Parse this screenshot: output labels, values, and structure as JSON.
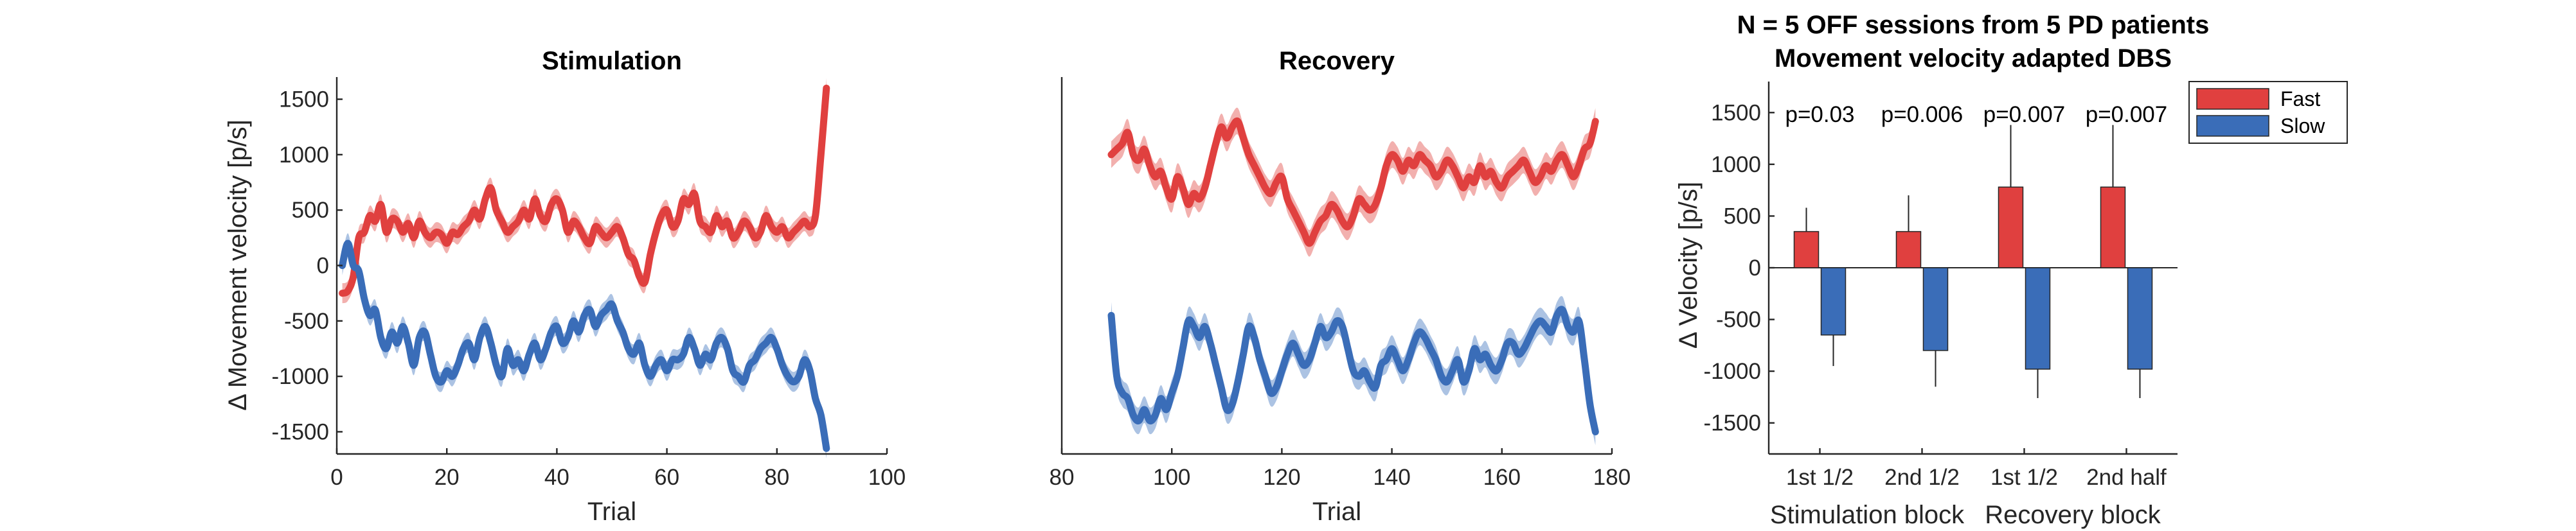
{
  "figure": {
    "colors": {
      "fast": "#E0403F",
      "fast_band": "#F0A2A0",
      "slow": "#3A6DB8",
      "slow_band": "#9DB8DE",
      "axis": "#262626"
    }
  },
  "chart_data": [
    {
      "type": "line",
      "title": "Stimulation",
      "xlabel": "Trial",
      "ylabel": "Δ Movement velocity [p/s]",
      "xlim": [
        0,
        100
      ],
      "ylim": [
        -1700,
        1700
      ],
      "xticks": [
        0,
        20,
        40,
        60,
        80,
        100
      ],
      "yticks": [
        -1500,
        -1000,
        -500,
        0,
        500,
        1000,
        1500
      ],
      "band_halfwidth": 90,
      "series": [
        {
          "key": "fast",
          "x": [
            1,
            2,
            3,
            4,
            5,
            6,
            7,
            8,
            9,
            10,
            11,
            12,
            13,
            14,
            15,
            16,
            17,
            18,
            19,
            20,
            21,
            22,
            23,
            24,
            25,
            26,
            27,
            28,
            29,
            30,
            31,
            32,
            33,
            34,
            35,
            36,
            37,
            38,
            39,
            40,
            41,
            42,
            43,
            44,
            45,
            46,
            47,
            48,
            49,
            50,
            51,
            52,
            53,
            54,
            55,
            56,
            57,
            58,
            59,
            60,
            61,
            62,
            63,
            64,
            65,
            66,
            67,
            68,
            69,
            70,
            71,
            72,
            73,
            74,
            75,
            76,
            77,
            78,
            79,
            80,
            81,
            82,
            83,
            84,
            85,
            86,
            87,
            88,
            89
          ],
          "y": [
            -250,
            -230,
            -100,
            250,
            300,
            450,
            400,
            550,
            300,
            420,
            400,
            300,
            380,
            250,
            400,
            300,
            250,
            300,
            280,
            200,
            300,
            280,
            350,
            400,
            500,
            420,
            600,
            700,
            500,
            400,
            300,
            350,
            400,
            500,
            420,
            600,
            450,
            400,
            550,
            600,
            500,
            300,
            400,
            350,
            250,
            200,
            350,
            300,
            250,
            300,
            350,
            250,
            100,
            50,
            -100,
            -150,
            100,
            300,
            450,
            500,
            350,
            400,
            600,
            550,
            650,
            400,
            350,
            300,
            450,
            350,
            400,
            250,
            300,
            400,
            350,
            250,
            300,
            450,
            350,
            300,
            350,
            250,
            300,
            350,
            400,
            350,
            450,
            1000,
            1600
          ]
        },
        {
          "key": "slow",
          "x": [
            1,
            2,
            3,
            4,
            5,
            6,
            7,
            8,
            9,
            10,
            11,
            12,
            13,
            14,
            15,
            16,
            17,
            18,
            19,
            20,
            21,
            22,
            23,
            24,
            25,
            26,
            27,
            28,
            29,
            30,
            31,
            32,
            33,
            34,
            35,
            36,
            37,
            38,
            39,
            40,
            41,
            42,
            43,
            44,
            45,
            46,
            47,
            48,
            49,
            50,
            51,
            52,
            53,
            54,
            55,
            56,
            57,
            58,
            59,
            60,
            61,
            62,
            63,
            64,
            65,
            66,
            67,
            68,
            69,
            70,
            71,
            72,
            73,
            74,
            75,
            76,
            77,
            78,
            79,
            80,
            81,
            82,
            83,
            84,
            85,
            86,
            87,
            88,
            89
          ],
          "y": [
            0,
            200,
            0,
            -50,
            -300,
            -450,
            -400,
            -650,
            -750,
            -600,
            -700,
            -550,
            -700,
            -900,
            -650,
            -600,
            -800,
            -1000,
            -1050,
            -950,
            -1000,
            -900,
            -750,
            -700,
            -850,
            -650,
            -550,
            -700,
            -900,
            -1000,
            -750,
            -900,
            -850,
            -950,
            -800,
            -700,
            -850,
            -750,
            -600,
            -550,
            -700,
            -650,
            -500,
            -600,
            -450,
            -400,
            -550,
            -450,
            -400,
            -350,
            -500,
            -600,
            -750,
            -800,
            -700,
            -900,
            -1000,
            -900,
            -850,
            -950,
            -850,
            -850,
            -800,
            -650,
            -750,
            -900,
            -800,
            -850,
            -700,
            -650,
            -750,
            -950,
            -1000,
            -1050,
            -900,
            -850,
            -750,
            -700,
            -650,
            -750,
            -900,
            -1000,
            -1050,
            -1000,
            -850,
            -950,
            -1200,
            -1350,
            -1650
          ]
        }
      ]
    },
    {
      "type": "line",
      "title": "Recovery",
      "xlabel": "Trial",
      "ylabel": "",
      "xlim": [
        80,
        180
      ],
      "ylim": [
        -1700,
        1700
      ],
      "xticks": [
        80,
        100,
        120,
        140,
        160,
        180
      ],
      "yticks": [],
      "band_halfwidth": 120,
      "series": [
        {
          "key": "fast",
          "x": [
            89,
            90,
            91,
            92,
            93,
            94,
            95,
            96,
            97,
            98,
            99,
            100,
            101,
            102,
            103,
            104,
            105,
            106,
            107,
            108,
            109,
            110,
            111,
            112,
            113,
            114,
            115,
            116,
            117,
            118,
            119,
            120,
            121,
            122,
            123,
            124,
            125,
            126,
            127,
            128,
            129,
            130,
            131,
            132,
            133,
            134,
            135,
            136,
            137,
            138,
            139,
            140,
            141,
            142,
            143,
            144,
            145,
            146,
            147,
            148,
            149,
            150,
            151,
            152,
            153,
            154,
            155,
            156,
            157,
            158,
            159,
            160,
            161,
            162,
            163,
            164,
            165,
            166,
            167,
            168,
            169,
            170,
            171,
            172,
            173,
            174,
            175,
            176,
            177
          ],
          "y": [
            1000,
            1050,
            1100,
            1200,
            1000,
            950,
            1050,
            900,
            800,
            850,
            700,
            600,
            800,
            700,
            550,
            650,
            600,
            700,
            900,
            1100,
            1250,
            1150,
            1250,
            1300,
            1150,
            1000,
            900,
            800,
            700,
            650,
            750,
            800,
            600,
            500,
            400,
            300,
            200,
            300,
            400,
            450,
            550,
            500,
            400,
            350,
            450,
            600,
            550,
            500,
            550,
            700,
            900,
            1000,
            950,
            850,
            950,
            900,
            1000,
            950,
            900,
            800,
            850,
            950,
            900,
            800,
            700,
            800,
            750,
            900,
            800,
            850,
            750,
            700,
            800,
            850,
            900,
            950,
            850,
            750,
            800,
            900,
            850,
            950,
            1000,
            900,
            800,
            900,
            1050,
            1100,
            1300
          ]
        },
        {
          "key": "slow",
          "x": [
            89,
            90,
            91,
            92,
            93,
            94,
            95,
            96,
            97,
            98,
            99,
            100,
            101,
            102,
            103,
            104,
            105,
            106,
            107,
            108,
            109,
            110,
            111,
            112,
            113,
            114,
            115,
            116,
            117,
            118,
            119,
            120,
            121,
            122,
            123,
            124,
            125,
            126,
            127,
            128,
            129,
            130,
            131,
            132,
            133,
            134,
            135,
            136,
            137,
            138,
            139,
            140,
            141,
            142,
            143,
            144,
            145,
            146,
            147,
            148,
            149,
            150,
            151,
            152,
            153,
            154,
            155,
            156,
            157,
            158,
            159,
            160,
            161,
            162,
            163,
            164,
            165,
            166,
            167,
            168,
            169,
            170,
            171,
            172,
            173,
            174,
            175,
            176,
            177
          ],
          "y": [
            -450,
            -1000,
            -1150,
            -1200,
            -1350,
            -1400,
            -1300,
            -1400,
            -1350,
            -1200,
            -1300,
            -1150,
            -1000,
            -750,
            -500,
            -550,
            -650,
            -550,
            -700,
            -900,
            -1100,
            -1300,
            -1250,
            -1050,
            -800,
            -550,
            -650,
            -850,
            -1000,
            -1150,
            -1100,
            -950,
            -800,
            -700,
            -800,
            -900,
            -850,
            -700,
            -550,
            -650,
            -600,
            -500,
            -550,
            -750,
            -950,
            -1000,
            -950,
            -1050,
            -1100,
            -900,
            -850,
            -750,
            -850,
            -950,
            -850,
            -700,
            -600,
            -650,
            -750,
            -850,
            -1000,
            -1050,
            -950,
            -850,
            -1050,
            -950,
            -750,
            -850,
            -800,
            -900,
            -950,
            -850,
            -700,
            -700,
            -800,
            -750,
            -650,
            -550,
            -500,
            -550,
            -600,
            -450,
            -400,
            -550,
            -600,
            -500,
            -850,
            -1250,
            -1500
          ]
        }
      ]
    },
    {
      "type": "bar",
      "title_lines": [
        "N = 5 OFF sessions from 5 PD patients",
        "Movement velocity adapted DBS"
      ],
      "ylabel": "Δ Velocity [p/s]",
      "ylim": [
        -1800,
        1800
      ],
      "yticks": [
        -1500,
        -1000,
        -500,
        0,
        500,
        1000,
        1500
      ],
      "categories": [
        "1st 1/2",
        "2nd 1/2",
        "1st 1/2",
        "2nd half"
      ],
      "group_labels": [
        "Stimulation block",
        "Recovery block"
      ],
      "series": [
        {
          "name": "Fast",
          "key": "fast",
          "values": [
            350,
            350,
            780,
            780
          ],
          "errors": [
            230,
            350,
            600,
            600
          ]
        },
        {
          "name": "Slow",
          "key": "slow",
          "values": [
            -650,
            -800,
            -980,
            -980
          ],
          "errors": [
            300,
            350,
            280,
            280
          ]
        }
      ],
      "annotations": [
        "p=0.03",
        "p=0.006",
        "p=0.007",
        "p=0.007"
      ],
      "legend": {
        "placement": "outside-top-right",
        "entries": [
          "Fast",
          "Slow"
        ]
      }
    }
  ]
}
